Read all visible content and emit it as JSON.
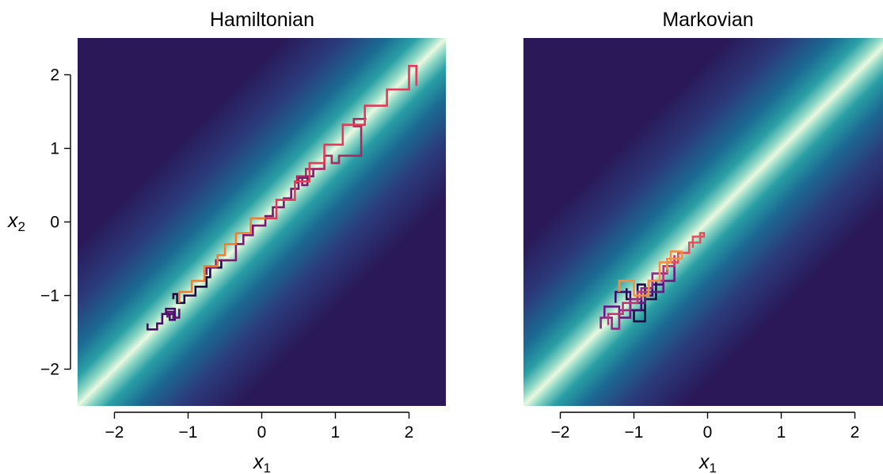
{
  "chart_data": [
    {
      "type": "line",
      "title": "Hamiltonian",
      "xlabel": "x",
      "xlabel_sub": "1",
      "ylabel": "x",
      "ylabel_sub": "2",
      "xlim": [
        -2.5,
        2.5
      ],
      "ylim": [
        -2.5,
        2.5
      ],
      "xticks": [
        -2,
        -1,
        0,
        1,
        2
      ],
      "xtick_labels": [
        "−2",
        "−1",
        "0",
        "1",
        "2"
      ],
      "yticks": [
        -2,
        -1,
        0,
        1,
        2
      ],
      "ytick_labels": [
        "−2",
        "−1",
        "0",
        "1",
        "2"
      ],
      "show_yticks": true,
      "background": "gaussian-density-correlated-0.98",
      "series": [
        {
          "color": "#1b0c41",
          "points": [
            [
              -1.2,
              -1.05
            ],
            [
              -1.2,
              -0.98
            ],
            [
              -1.15,
              -0.98
            ],
            [
              -1.15,
              -1.1
            ],
            [
              -1.05,
              -1.1
            ],
            [
              -1.05,
              -1.0
            ],
            [
              -0.9,
              -1.0
            ],
            [
              -0.9,
              -0.88
            ],
            [
              -0.75,
              -0.88
            ],
            [
              -0.75,
              -0.75
            ],
            [
              -0.7,
              -0.75
            ],
            [
              -0.7,
              -0.62
            ],
            [
              -0.55,
              -0.62
            ],
            [
              -0.55,
              -0.52
            ],
            [
              -0.45,
              -0.52
            ]
          ]
        },
        {
          "color": "#4a0c6b",
          "points": [
            [
              -1.55,
              -1.38
            ],
            [
              -1.55,
              -1.46
            ],
            [
              -1.42,
              -1.46
            ],
            [
              -1.42,
              -1.38
            ],
            [
              -1.35,
              -1.38
            ],
            [
              -1.35,
              -1.25
            ],
            [
              -1.25,
              -1.25
            ],
            [
              -1.25,
              -1.33
            ],
            [
              -1.18,
              -1.33
            ],
            [
              -1.18,
              -1.18
            ],
            [
              -1.3,
              -1.18
            ],
            [
              -1.3,
              -1.25
            ],
            [
              -1.2,
              -1.25
            ]
          ]
        },
        {
          "color": "#5c126e",
          "points": [
            [
              -1.28,
              -1.3
            ],
            [
              -1.28,
              -1.22
            ],
            [
              -1.2,
              -1.22
            ],
            [
              -1.2,
              -1.3
            ],
            [
              -1.12,
              -1.3
            ],
            [
              -1.12,
              -1.18
            ]
          ]
        },
        {
          "color": "#781c6d",
          "points": [
            [
              -0.75,
              -0.72
            ],
            [
              -0.75,
              -0.62
            ],
            [
              -0.62,
              -0.62
            ],
            [
              -0.62,
              -0.52
            ],
            [
              -0.35,
              -0.52
            ],
            [
              -0.35,
              -0.3
            ],
            [
              -0.25,
              -0.3
            ],
            [
              -0.25,
              -0.18
            ],
            [
              -0.12,
              -0.18
            ],
            [
              -0.12,
              -0.05
            ],
            [
              0.05,
              -0.05
            ],
            [
              0.05,
              0.08
            ],
            [
              0.15,
              0.08
            ],
            [
              0.15,
              0.2
            ],
            [
              0.3,
              0.2
            ],
            [
              0.3,
              0.32
            ],
            [
              0.4,
              0.32
            ],
            [
              0.4,
              0.45
            ],
            [
              0.5,
              0.45
            ],
            [
              0.5,
              0.6
            ],
            [
              0.62,
              0.6
            ],
            [
              0.62,
              0.5
            ],
            [
              0.55,
              0.5
            ],
            [
              0.55,
              0.62
            ],
            [
              0.7,
              0.62
            ],
            [
              0.7,
              0.72
            ],
            [
              0.82,
              0.72
            ]
          ]
        },
        {
          "color": "#a52c60",
          "points": [
            [
              0.48,
              0.52
            ],
            [
              0.48,
              0.62
            ],
            [
              0.6,
              0.62
            ],
            [
              0.6,
              0.72
            ],
            [
              0.85,
              0.72
            ],
            [
              0.85,
              0.9
            ],
            [
              0.95,
              0.9
            ],
            [
              0.95,
              0.8
            ],
            [
              1.05,
              0.8
            ],
            [
              1.05,
              0.9
            ],
            [
              1.35,
              0.9
            ],
            [
              1.35,
              1.3
            ],
            [
              1.25,
              1.3
            ],
            [
              1.25,
              1.4
            ],
            [
              1.42,
              1.4
            ]
          ]
        },
        {
          "color": "#e03b5a",
          "points": [
            [
              -0.05,
              0.05
            ],
            [
              0.2,
              0.05
            ],
            [
              0.2,
              0.3
            ],
            [
              0.45,
              0.3
            ],
            [
              0.45,
              0.55
            ],
            [
              0.65,
              0.55
            ],
            [
              0.65,
              0.8
            ],
            [
              0.85,
              0.8
            ],
            [
              0.85,
              1.05
            ],
            [
              1.1,
              1.05
            ],
            [
              1.1,
              1.32
            ],
            [
              1.4,
              1.32
            ],
            [
              1.4,
              1.58
            ],
            [
              1.7,
              1.58
            ],
            [
              1.7,
              1.8
            ],
            [
              2.0,
              1.8
            ],
            [
              2.0,
              2.12
            ],
            [
              2.1,
              2.12
            ],
            [
              2.1,
              1.92
            ],
            [
              2.1,
              1.85
            ]
          ]
        },
        {
          "color": "#f08030",
          "points": [
            [
              -1.12,
              -1.1
            ],
            [
              -1.12,
              -0.95
            ],
            [
              -0.95,
              -0.95
            ],
            [
              -0.95,
              -0.8
            ],
            [
              -0.78,
              -0.8
            ],
            [
              -0.78,
              -0.6
            ],
            [
              -0.6,
              -0.6
            ],
            [
              -0.6,
              -0.45
            ],
            [
              -0.5,
              -0.45
            ],
            [
              -0.5,
              -0.3
            ],
            [
              -0.35,
              -0.3
            ],
            [
              -0.35,
              -0.15
            ],
            [
              -0.15,
              -0.15
            ],
            [
              -0.15,
              0.05
            ],
            [
              0.05,
              0.05
            ]
          ]
        }
      ]
    },
    {
      "type": "line",
      "title": "Markovian",
      "xlabel": "x",
      "xlabel_sub": "1",
      "ylabel": "",
      "ylabel_sub": "",
      "xlim": [
        -2.5,
        2.5
      ],
      "ylim": [
        -2.5,
        2.5
      ],
      "xticks": [
        -2,
        -1,
        0,
        1,
        2
      ],
      "xtick_labels": [
        "−2",
        "−1",
        "0",
        "1",
        "2"
      ],
      "yticks": [],
      "ytick_labels": [],
      "show_yticks": false,
      "background": "gaussian-density-correlated-0.98",
      "series": [
        {
          "color": "#1b0c41",
          "points": [
            [
              -1.1,
              -0.9
            ],
            [
              -1.1,
              -1.05
            ],
            [
              -0.95,
              -1.05
            ],
            [
              -0.95,
              -0.85
            ],
            [
              -0.85,
              -0.85
            ],
            [
              -0.85,
              -1.2
            ],
            [
              -1.0,
              -1.2
            ],
            [
              -1.0,
              -1.35
            ],
            [
              -0.85,
              -1.35
            ],
            [
              -0.85,
              -1.05
            ],
            [
              -0.7,
              -1.05
            ],
            [
              -0.7,
              -0.8
            ]
          ]
        },
        {
          "color": "#3b0f70",
          "points": [
            [
              -1.25,
              -1.1
            ],
            [
              -1.25,
              -0.95
            ],
            [
              -1.05,
              -0.95
            ],
            [
              -1.05,
              -1.2
            ],
            [
              -0.9,
              -1.2
            ],
            [
              -0.9,
              -1.0
            ],
            [
              -0.75,
              -1.0
            ],
            [
              -0.75,
              -0.85
            ],
            [
              -0.6,
              -0.85
            ],
            [
              -0.6,
              -0.7
            ]
          ]
        },
        {
          "color": "#641a80",
          "points": [
            [
              -1.4,
              -1.3
            ],
            [
              -1.4,
              -1.15
            ],
            [
              -1.2,
              -1.15
            ],
            [
              -1.2,
              -1.3
            ],
            [
              -1.05,
              -1.3
            ],
            [
              -1.05,
              -1.1
            ],
            [
              -0.85,
              -1.1
            ],
            [
              -0.85,
              -0.95
            ],
            [
              -0.6,
              -0.95
            ],
            [
              -0.6,
              -0.8
            ],
            [
              -0.45,
              -0.8
            ],
            [
              -0.45,
              -0.6
            ]
          ]
        },
        {
          "color": "#8c2981",
          "points": [
            [
              -1.45,
              -1.45
            ],
            [
              -1.45,
              -1.3
            ],
            [
              -1.3,
              -1.3
            ],
            [
              -1.3,
              -1.45
            ],
            [
              -1.2,
              -1.45
            ],
            [
              -1.2,
              -1.2
            ],
            [
              -1.05,
              -1.2
            ],
            [
              -1.05,
              -1.05
            ],
            [
              -0.9,
              -1.05
            ],
            [
              -0.9,
              -0.9
            ],
            [
              -0.75,
              -0.9
            ],
            [
              -0.75,
              -0.7
            ],
            [
              -0.55,
              -0.7
            ],
            [
              -0.55,
              -0.55
            ],
            [
              -0.4,
              -0.55
            ]
          ]
        },
        {
          "color": "#b73779",
          "points": [
            [
              -1.35,
              -1.4
            ],
            [
              -1.35,
              -1.25
            ],
            [
              -1.15,
              -1.25
            ],
            [
              -1.15,
              -1.1
            ],
            [
              -0.95,
              -1.1
            ],
            [
              -0.95,
              -0.95
            ],
            [
              -0.8,
              -0.95
            ],
            [
              -0.8,
              -0.8
            ],
            [
              -0.6,
              -0.8
            ],
            [
              -0.6,
              -0.6
            ],
            [
              -0.45,
              -0.6
            ],
            [
              -0.45,
              -0.45
            ]
          ]
        },
        {
          "color": "#e34f5c",
          "points": [
            [
              -0.55,
              -0.7
            ],
            [
              -0.55,
              -0.55
            ],
            [
              -0.4,
              -0.55
            ],
            [
              -0.4,
              -0.42
            ],
            [
              -0.25,
              -0.42
            ],
            [
              -0.25,
              -0.28
            ],
            [
              -0.1,
              -0.28
            ],
            [
              -0.1,
              -0.15
            ],
            [
              -0.05,
              -0.15
            ],
            [
              -0.05,
              -0.2
            ],
            [
              -0.2,
              -0.2
            ],
            [
              -0.2,
              -0.35
            ]
          ]
        },
        {
          "color": "#f68f44",
          "points": [
            [
              -1.2,
              -0.95
            ],
            [
              -1.2,
              -0.8
            ],
            [
              -1.0,
              -0.8
            ],
            [
              -1.0,
              -1.0
            ],
            [
              -0.8,
              -1.0
            ],
            [
              -0.8,
              -0.8
            ],
            [
              -0.65,
              -0.8
            ],
            [
              -0.65,
              -0.55
            ],
            [
              -0.5,
              -0.55
            ],
            [
              -0.5,
              -0.4
            ],
            [
              -0.35,
              -0.4
            ],
            [
              -0.35,
              -0.5
            ],
            [
              -0.55,
              -0.5
            ],
            [
              -0.55,
              -0.65
            ]
          ]
        }
      ]
    }
  ]
}
